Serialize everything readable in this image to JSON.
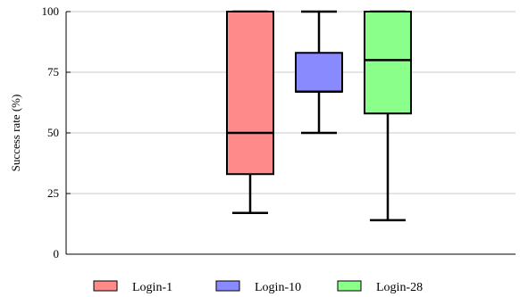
{
  "chart_data": {
    "type": "boxplot",
    "ylabel": "Success rate (%)",
    "ylim": [
      0,
      100
    ],
    "yticks": [
      0,
      25,
      50,
      75,
      100
    ],
    "grid": "horizontal",
    "legend_position": "bottom",
    "series": [
      {
        "name": "Login-1",
        "color": "#ff8a8a",
        "min": 17,
        "q1": 33,
        "median": 50,
        "q3": 100,
        "max": 100
      },
      {
        "name": "Login-10",
        "color": "#8a8aff",
        "min": 50,
        "q1": 67,
        "median": 67,
        "q3": 83,
        "max": 100
      },
      {
        "name": "Login-28",
        "color": "#8aff8a",
        "min": 14,
        "q1": 58,
        "median": 80,
        "q3": 100,
        "max": 100
      }
    ]
  }
}
